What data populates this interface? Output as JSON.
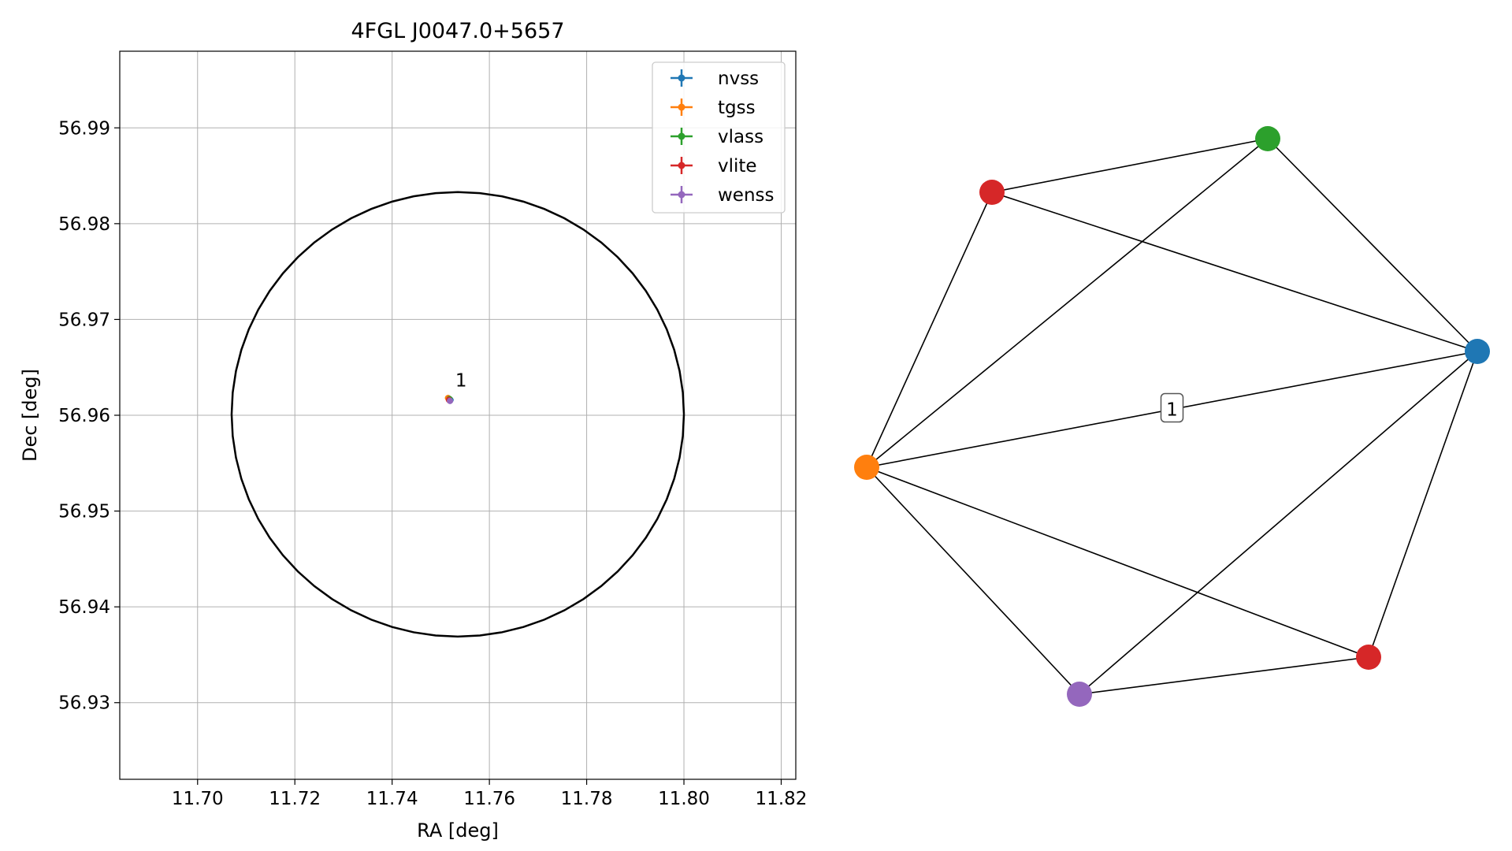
{
  "chart_data": [
    {
      "type": "scatter",
      "title": "4FGL J0047.0+5657",
      "xlabel": "RA [deg]",
      "ylabel": "Dec [deg]",
      "xlim": [
        11.684,
        11.823
      ],
      "ylim": [
        56.922,
        56.998
      ],
      "xticks": [
        11.7,
        11.72,
        11.74,
        11.76,
        11.78,
        11.8,
        11.82
      ],
      "yticks": [
        56.93,
        56.94,
        56.95,
        56.96,
        56.97,
        56.98,
        56.99
      ],
      "xtick_labels": [
        "11.70",
        "11.72",
        "11.74",
        "11.76",
        "11.78",
        "11.80",
        "11.82"
      ],
      "ytick_labels": [
        "56.93",
        "56.94",
        "56.95",
        "56.96",
        "56.97",
        "56.98",
        "56.99"
      ],
      "grid": true,
      "legend_position": "top-right",
      "circle": {
        "ra": 11.7535,
        "dec": 56.9601,
        "radius_ra": 0.0465,
        "radius_dec": 0.0232,
        "color": "#000000"
      },
      "series": [
        {
          "name": "nvss",
          "color": "#1f77b4",
          "points": [
            {
              "x": 11.752,
              "y": 56.9616
            }
          ]
        },
        {
          "name": "tgss",
          "color": "#ff7f0e",
          "points": [
            {
              "x": 11.7515,
              "y": 56.9618
            }
          ]
        },
        {
          "name": "vlass",
          "color": "#2ca02c",
          "points": [
            {
              "x": 11.7518,
              "y": 56.9617
            }
          ]
        },
        {
          "name": "vlite",
          "color": "#d62728",
          "points": [
            {
              "x": 11.7517,
              "y": 56.9616
            }
          ]
        },
        {
          "name": "wenss",
          "color": "#9467bd",
          "points": [
            {
              "x": 11.7519,
              "y": 56.9615
            }
          ]
        }
      ],
      "annotations": [
        {
          "text": "1",
          "x": 11.7525,
          "y": 56.9625
        }
      ]
    },
    {
      "type": "network",
      "nodes": [
        {
          "id": "nvss",
          "color": "#1f77b4"
        },
        {
          "id": "tgss",
          "color": "#ff7f0e"
        },
        {
          "id": "vlass",
          "color": "#2ca02c"
        },
        {
          "id": "vlite_a",
          "color": "#d62728"
        },
        {
          "id": "vlite_b",
          "color": "#d62728"
        },
        {
          "id": "wenss",
          "color": "#9467bd"
        }
      ],
      "edges": [
        [
          "vlass",
          "vlite_a"
        ],
        [
          "vlass",
          "nvss"
        ],
        [
          "vlass",
          "tgss"
        ],
        [
          "vlite_a",
          "tgss"
        ],
        [
          "vlite_a",
          "nvss"
        ],
        [
          "nvss",
          "tgss"
        ],
        [
          "nvss",
          "wenss"
        ],
        [
          "nvss",
          "vlite_b"
        ],
        [
          "tgss",
          "wenss"
        ],
        [
          "tgss",
          "vlite_b"
        ],
        [
          "wenss",
          "vlite_b"
        ]
      ],
      "edge_label": {
        "text": "1",
        "edge": [
          "nvss",
          "tgss"
        ]
      }
    }
  ]
}
